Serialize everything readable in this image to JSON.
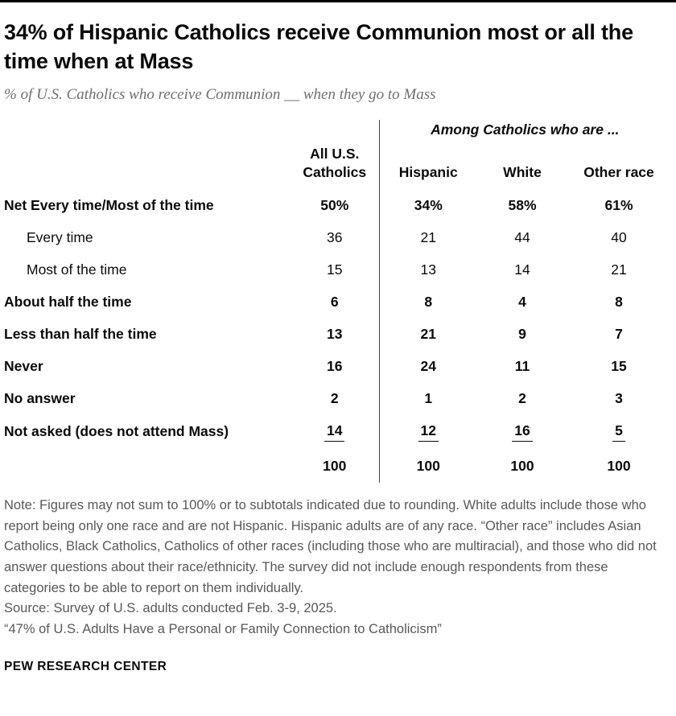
{
  "header": {
    "title": "34% of Hispanic Catholics receive Communion most or all the time when at Mass",
    "subtitle": "% of U.S. Catholics who receive Communion __ when they go to Mass"
  },
  "chart_data": {
    "type": "table",
    "title": "34% of Hispanic Catholics receive Communion most or all the time when at Mass",
    "subtitle": "% of U.S. Catholics who receive Communion __ when they go to Mass",
    "group_header": "Among Catholics who are ...",
    "columns": [
      "All U.S. Catholics",
      "Hispanic",
      "White",
      "Other race"
    ],
    "rows": [
      {
        "label": "Net Every time/Most of the time",
        "values": [
          "50%",
          "34%",
          "58%",
          "61%"
        ],
        "bold": true,
        "indent": false
      },
      {
        "label": "Every time",
        "values": [
          "36",
          "21",
          "44",
          "40"
        ],
        "bold": false,
        "indent": true
      },
      {
        "label": "Most of the time",
        "values": [
          "15",
          "13",
          "14",
          "21"
        ],
        "bold": false,
        "indent": true
      },
      {
        "label": "About half the time",
        "values": [
          "6",
          "8",
          "4",
          "8"
        ],
        "bold": true,
        "indent": false
      },
      {
        "label": "Less than half the time",
        "values": [
          "13",
          "21",
          "9",
          "7"
        ],
        "bold": true,
        "indent": false
      },
      {
        "label": "Never",
        "values": [
          "16",
          "24",
          "11",
          "15"
        ],
        "bold": true,
        "indent": false
      },
      {
        "label": "No answer",
        "values": [
          "2",
          "1",
          "2",
          "3"
        ],
        "bold": true,
        "indent": false
      },
      {
        "label": "Not asked (does not attend Mass)",
        "values": [
          "14",
          "12",
          "16",
          "5"
        ],
        "bold": true,
        "indent": false,
        "underline": true
      },
      {
        "label": "",
        "values": [
          "100",
          "100",
          "100",
          "100"
        ],
        "bold": true,
        "indent": false,
        "total": true
      }
    ]
  },
  "footer": {
    "note": "Note: Figures may not sum to 100% or to subtotals indicated due to rounding. White adults include those who report being only one race and are not Hispanic. Hispanic adults are of any race. “Other race” includes Asian Catholics, Black Catholics, Catholics of other races (including those who are multiracial), and those who did not answer questions about their race/ethnicity. The survey did not include enough respondents from these categories to be able to report on them individually.",
    "source": "Source: Survey of U.S. adults conducted Feb. 3-9, 2025.",
    "report": "“47% of U.S. Adults Have a Personal or Family Connection to Catholicism”",
    "brand": "PEW RESEARCH CENTER"
  }
}
